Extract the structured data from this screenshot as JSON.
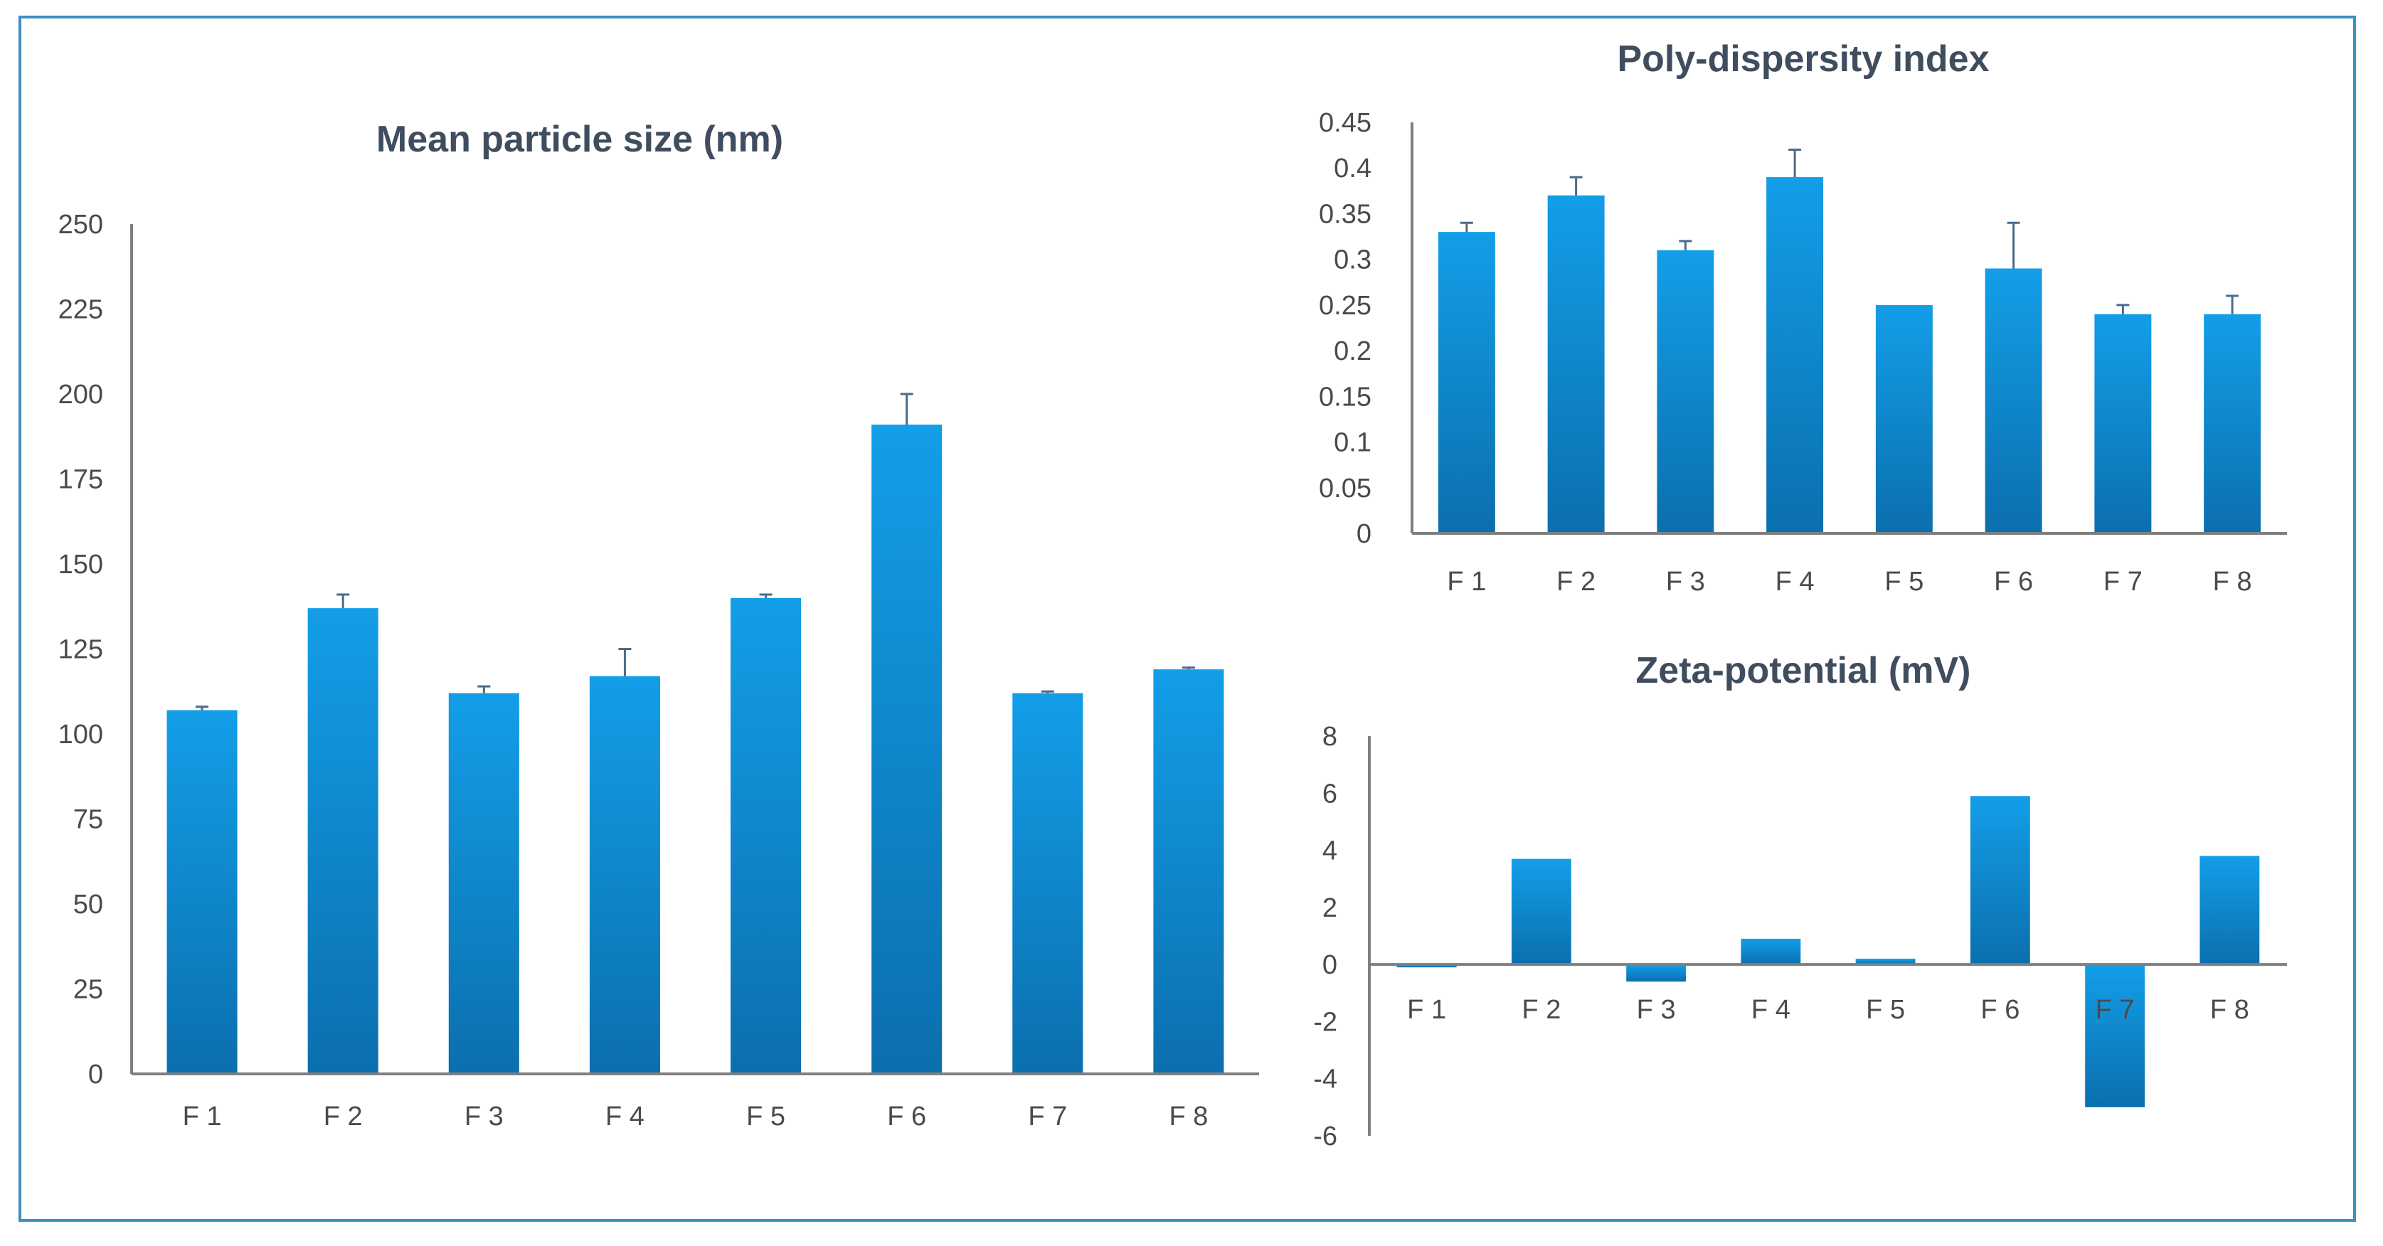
{
  "colors": {
    "frame": "#3f8fbf",
    "bar_top": "#139ee8",
    "bar_bottom": "#0b6fae",
    "axis": "#7f7f7f",
    "error_bar": "#4a6b8a"
  },
  "chart_data": [
    {
      "id": "size",
      "type": "bar",
      "title": "Mean particle size (nm)",
      "categories": [
        "F 1",
        "F 2",
        "F 3",
        "F 4",
        "F 5",
        "F 6",
        "F 7",
        "F 8"
      ],
      "values": [
        107,
        137,
        112,
        117,
        140,
        191,
        112,
        119
      ],
      "errors": [
        1,
        4,
        2,
        8,
        1,
        9,
        0.5,
        0.5
      ],
      "yticks": [
        "0",
        "25",
        "50",
        "75",
        "100",
        "125",
        "150",
        "175",
        "200",
        "225",
        "250"
      ],
      "ylim": [
        0,
        250
      ],
      "grid": false
    },
    {
      "id": "pdi",
      "type": "bar",
      "title": "Poly-dispersity index",
      "categories": [
        "F 1",
        "F 2",
        "F 3",
        "F 4",
        "F 5",
        "F 6",
        "F 7",
        "F 8"
      ],
      "values": [
        0.33,
        0.37,
        0.31,
        0.39,
        0.25,
        0.29,
        0.24,
        0.24
      ],
      "errors": [
        0.01,
        0.02,
        0.01,
        0.03,
        0,
        0.05,
        0.01,
        0.02
      ],
      "yticks": [
        "0",
        "0.05",
        "0.1",
        "0.15",
        "0.2",
        "0.25",
        "0.3",
        "0.35",
        "0.4",
        "0.45"
      ],
      "ylim": [
        0,
        0.45
      ],
      "grid": false
    },
    {
      "id": "zeta",
      "type": "bar",
      "title": "Zeta-potential (mV)",
      "categories": [
        "F 1",
        "F 2",
        "F 3",
        "F 4",
        "F 5",
        "F 6",
        "F 7",
        "F 8"
      ],
      "values": [
        -0.1,
        3.7,
        -0.6,
        0.9,
        0.2,
        5.9,
        -5.0,
        3.8
      ],
      "yticks": [
        "-6",
        "-4",
        "-2",
        "0",
        "2",
        "4",
        "6",
        "8"
      ],
      "ylim": [
        -6,
        8
      ],
      "grid": false
    }
  ]
}
